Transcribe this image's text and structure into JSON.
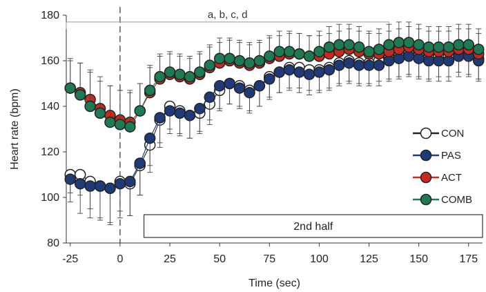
{
  "chart_data": {
    "type": "line",
    "xlabel": "Time (sec)",
    "ylabel": "Heart rate (bpm)",
    "xlim": [
      -27,
      182
    ],
    "ylim": [
      80,
      180
    ],
    "xticks": [
      -25,
      0,
      25,
      50,
      75,
      100,
      125,
      150,
      175
    ],
    "yticks": [
      80,
      100,
      120,
      140,
      160,
      180
    ],
    "x": [
      -25,
      -20,
      -15,
      -10,
      -5,
      0,
      5,
      10,
      15,
      20,
      25,
      30,
      35,
      40,
      45,
      50,
      55,
      60,
      65,
      70,
      75,
      80,
      85,
      90,
      95,
      100,
      105,
      110,
      115,
      120,
      125,
      130,
      135,
      140,
      145,
      150,
      155,
      160,
      165,
      170,
      175,
      180
    ],
    "series": [
      {
        "name": "CON",
        "color": "#ffffff",
        "values": [
          110,
          110,
          107,
          105,
          104,
          107,
          106,
          114,
          123,
          134,
          140,
          138,
          136,
          137,
          141,
          147,
          150,
          149,
          147,
          149,
          153,
          155,
          157,
          157,
          156,
          156,
          157,
          159,
          160,
          159,
          159,
          160,
          161,
          162,
          163,
          162,
          161,
          162,
          162,
          164,
          163,
          161
        ],
        "err": [
          8,
          9,
          12,
          14,
          15,
          13,
          14,
          13,
          12,
          12,
          10,
          10,
          10,
          9,
          9,
          9,
          9,
          9,
          9,
          9,
          9,
          9,
          9,
          9,
          9,
          9,
          9,
          9,
          9,
          9,
          9,
          9,
          9,
          9,
          9,
          9,
          9,
          9,
          9,
          9,
          9,
          9
        ]
      },
      {
        "name": "PAS",
        "color": "#1f3a78",
        "values": [
          108,
          106,
          105,
          105,
          104,
          106,
          107,
          115,
          126,
          135,
          138,
          137,
          136,
          139,
          144,
          149,
          150,
          148,
          146,
          149,
          152,
          155,
          156,
          155,
          154,
          155,
          156,
          158,
          159,
          158,
          158,
          158,
          160,
          161,
          162,
          161,
          160,
          160,
          160,
          162,
          162,
          160
        ],
        "err": [
          10,
          13,
          14,
          15,
          16,
          15,
          15,
          14,
          12,
          11,
          10,
          10,
          10,
          10,
          10,
          10,
          9,
          9,
          9,
          9,
          9,
          9,
          9,
          9,
          9,
          9,
          9,
          9,
          9,
          9,
          9,
          9,
          9,
          9,
          9,
          9,
          9,
          9,
          9,
          9,
          9,
          9
        ]
      },
      {
        "name": "ACT",
        "color": "#c8291e",
        "values": [
          148,
          146,
          143,
          139,
          136,
          134,
          133,
          138,
          146,
          152,
          154,
          153,
          152,
          154,
          157,
          159,
          160,
          159,
          158,
          159,
          161,
          162,
          163,
          163,
          162,
          162,
          163,
          164,
          165,
          164,
          163,
          163,
          164,
          165,
          166,
          165,
          164,
          164,
          164,
          165,
          165,
          163
        ],
        "err": [
          12,
          13,
          13,
          12,
          13,
          13,
          14,
          12,
          11,
          10,
          9,
          9,
          9,
          9,
          9,
          9,
          9,
          9,
          9,
          9,
          9,
          9,
          9,
          9,
          9,
          9,
          9,
          9,
          9,
          9,
          9,
          9,
          9,
          9,
          9,
          9,
          9,
          9,
          9,
          9,
          9,
          9
        ]
      },
      {
        "name": "COMB",
        "color": "#1e7a52",
        "values": [
          148,
          145,
          140,
          137,
          133,
          132,
          131,
          138,
          147,
          153,
          155,
          154,
          153,
          155,
          158,
          161,
          161,
          160,
          159,
          160,
          162,
          164,
          164,
          163,
          162,
          164,
          166,
          167,
          167,
          166,
          164,
          165,
          167,
          168,
          168,
          167,
          166,
          166,
          166,
          167,
          167,
          165
        ],
        "err": [
          13,
          14,
          15,
          16,
          16,
          15,
          15,
          12,
          11,
          10,
          9,
          9,
          9,
          9,
          9,
          9,
          9,
          9,
          9,
          9,
          9,
          9,
          9,
          9,
          9,
          9,
          9,
          9,
          9,
          9,
          9,
          9,
          9,
          9,
          9,
          9,
          9,
          9,
          9,
          9,
          9,
          9
        ]
      }
    ],
    "annotation": {
      "text": "a, b, c, d",
      "x_start": -27,
      "x_end": 135,
      "y": 177
    },
    "period_box": {
      "label": "2nd half",
      "x_start": 12,
      "x_end": 182
    },
    "divider_x": 0,
    "grid": false,
    "legend_position": "right"
  }
}
